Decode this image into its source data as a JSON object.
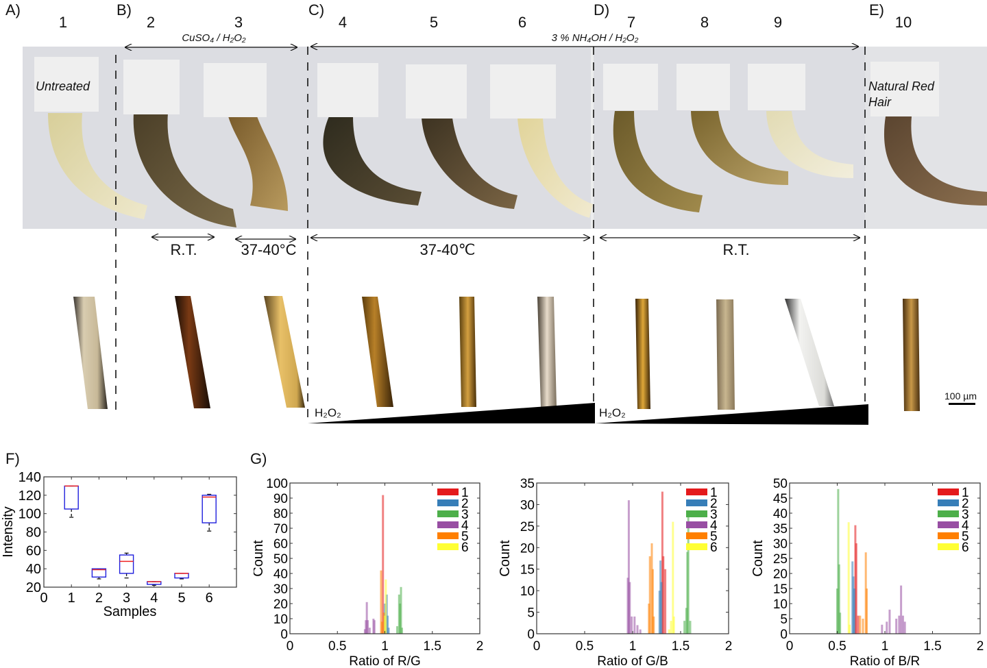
{
  "panels": {
    "A": {
      "letter": "A)",
      "samples": [
        "1"
      ],
      "card_label": "Untreated"
    },
    "B": {
      "letter": "B)",
      "samples": [
        "2",
        "3"
      ],
      "treatment": "CuSO₄ / H₂O₂",
      "conditions": [
        "R.T.",
        "37-40°C"
      ]
    },
    "C": {
      "letter": "C)",
      "samples": [
        "4",
        "5",
        "6"
      ],
      "condition": "37-40℃",
      "gradient_label": "H₂O₂"
    },
    "D": {
      "letter": "D)",
      "samples": [
        "7",
        "8",
        "9"
      ],
      "condition": "R.T.",
      "gradient_label": "H₂O₂"
    },
    "E": {
      "letter": "E)",
      "samples": [
        "10"
      ],
      "card_label_line1": "Natural Red",
      "card_label_line2": "Hair"
    },
    "CD_treatment": "3 % NH₄OH / H₂O₂",
    "F": {
      "letter": "F)"
    },
    "G": {
      "letter": "G)"
    }
  },
  "scale_bar": {
    "label": "100 µm"
  },
  "colors": {
    "series": [
      "#e41a1c",
      "#377eb8",
      "#4daf4a",
      "#984ea3",
      "#ff7f00",
      "#ffff33"
    ],
    "box": "#1f1fdd",
    "median": "#ee2222",
    "whisker": "#111111"
  },
  "chart_data": [
    {
      "type": "box",
      "panel": "F",
      "title": "",
      "xlabel": "Samples",
      "ylabel": "Intensity",
      "xlim": [
        0,
        7
      ],
      "ylim": [
        20,
        140
      ],
      "xticks": [
        "0",
        "1",
        "2",
        "3",
        "4",
        "5",
        "6"
      ],
      "yticks": [
        "20",
        "40",
        "60",
        "80",
        "100",
        "120",
        "140"
      ],
      "categories": [
        "1",
        "2",
        "3",
        "4",
        "5",
        "6"
      ],
      "boxes": [
        {
          "sample": 1,
          "min": 96,
          "q1": 105,
          "median": 130,
          "q3": 130,
          "max": 130
        },
        {
          "sample": 2,
          "min": 29,
          "q1": 31,
          "median": 39,
          "q3": 40,
          "max": 40
        },
        {
          "sample": 3,
          "min": 30,
          "q1": 35,
          "median": 48,
          "q3": 55,
          "max": 57
        },
        {
          "sample": 4,
          "min": 22,
          "q1": 23,
          "median": 26,
          "q3": 26,
          "max": 26
        },
        {
          "sample": 5,
          "min": 29,
          "q1": 30,
          "median": 35,
          "q3": 35,
          "max": 35
        },
        {
          "sample": 6,
          "min": 81,
          "q1": 90,
          "median": 118,
          "q3": 120,
          "max": 121
        }
      ],
      "grid": false
    },
    {
      "type": "histogram",
      "panel": "G-1",
      "xlabel": "Ratio of R/G",
      "ylabel": "Count",
      "xlim": [
        0,
        2
      ],
      "ylim": [
        0,
        100
      ],
      "xticks": [
        "0",
        "0.5",
        "1",
        "1.5",
        "2"
      ],
      "yticks": [
        "0",
        "10",
        "20",
        "30",
        "40",
        "50",
        "60",
        "70",
        "80",
        "90",
        "100"
      ],
      "legend": [
        "1",
        "2",
        "3",
        "4",
        "5",
        "6"
      ],
      "legend_position": "upper right",
      "series": [
        {
          "name": "1",
          "bins": [
            [
              0.98,
              92
            ]
          ]
        },
        {
          "name": "2",
          "bins": [
            [
              1.0,
              20
            ],
            [
              1.02,
              26
            ],
            [
              1.03,
              12
            ],
            [
              1.04,
              4
            ]
          ]
        },
        {
          "name": "3",
          "bins": [
            [
              1.13,
              5
            ],
            [
              1.15,
              26
            ],
            [
              1.16,
              20
            ],
            [
              1.17,
              31
            ],
            [
              1.18,
              4
            ]
          ]
        },
        {
          "name": "4",
          "bins": [
            [
              0.79,
              3
            ],
            [
              0.8,
              9
            ],
            [
              0.81,
              21
            ],
            [
              0.82,
              9
            ],
            [
              0.84,
              4
            ],
            [
              0.88,
              10
            ],
            [
              0.89,
              9
            ]
          ]
        },
        {
          "name": "5",
          "bins": [
            [
              0.96,
              42
            ],
            [
              0.97,
              8
            ],
            [
              0.99,
              14
            ]
          ]
        },
        {
          "name": "6",
          "bins": [
            [
              1.01,
              36
            ],
            [
              1.0,
              12
            ]
          ]
        }
      ]
    },
    {
      "type": "histogram",
      "panel": "G-2",
      "xlabel": "Ratio of G/B",
      "ylabel": "Count",
      "xlim": [
        0,
        2
      ],
      "ylim": [
        0,
        35
      ],
      "xticks": [
        "0",
        "0.5",
        "1",
        "1.5",
        "2"
      ],
      "yticks": [
        "0",
        "5",
        "10",
        "15",
        "20",
        "25",
        "30",
        "35"
      ],
      "legend": [
        "1",
        "2",
        "3",
        "4",
        "5",
        "6"
      ],
      "legend_position": "upper right",
      "series": [
        {
          "name": "1",
          "bins": [
            [
              1.31,
              33
            ],
            [
              1.32,
              18
            ],
            [
              1.34,
              15
            ]
          ]
        },
        {
          "name": "2",
          "bins": [
            [
              1.28,
              10
            ],
            [
              1.29,
              17
            ],
            [
              1.3,
              12
            ]
          ]
        },
        {
          "name": "3",
          "bins": [
            [
              1.54,
              3
            ],
            [
              1.56,
              6
            ],
            [
              1.57,
              19
            ],
            [
              1.58,
              28
            ],
            [
              1.6,
              3
            ]
          ]
        },
        {
          "name": "4",
          "bins": [
            [
              0.95,
              13
            ],
            [
              0.96,
              31
            ],
            [
              0.97,
              12
            ],
            [
              0.99,
              4
            ],
            [
              1.02,
              4
            ],
            [
              1.05,
              2
            ],
            [
              1.08,
              1
            ]
          ]
        },
        {
          "name": "5",
          "bins": [
            [
              1.17,
              7
            ],
            [
              1.18,
              18
            ],
            [
              1.2,
              21
            ],
            [
              1.21,
              15
            ],
            [
              1.22,
              4
            ]
          ]
        },
        {
          "name": "6",
          "bins": [
            [
              1.38,
              1
            ],
            [
              1.4,
              3
            ],
            [
              1.42,
              26
            ],
            [
              1.43,
              4
            ]
          ]
        }
      ]
    },
    {
      "type": "histogram",
      "panel": "G-3",
      "xlabel": "Ratio of B/R",
      "ylabel": "Count",
      "xlim": [
        0,
        2
      ],
      "ylim": [
        0,
        50
      ],
      "xticks": [
        "0",
        "0.5",
        "1",
        "1.5",
        "2"
      ],
      "yticks": [
        "0",
        "5",
        "10",
        "15",
        "20",
        "25",
        "30",
        "35",
        "40",
        "45",
        "50"
      ],
      "legend": [
        "1",
        "2",
        "3",
        "4",
        "5",
        "6"
      ],
      "legend_position": "upper right",
      "series": [
        {
          "name": "1",
          "bins": [
            [
              0.69,
              36
            ],
            [
              0.7,
              30
            ],
            [
              0.72,
              6
            ]
          ]
        },
        {
          "name": "2",
          "bins": [
            [
              0.66,
              24
            ],
            [
              0.67,
              19
            ],
            [
              0.68,
              15
            ]
          ]
        },
        {
          "name": "3",
          "bins": [
            [
              0.5,
              15
            ],
            [
              0.51,
              48
            ],
            [
              0.52,
              23
            ],
            [
              0.53,
              7
            ]
          ]
        },
        {
          "name": "4",
          "bins": [
            [
              0.97,
              3
            ],
            [
              1.02,
              4
            ],
            [
              1.05,
              8
            ],
            [
              1.12,
              5
            ],
            [
              1.15,
              6
            ],
            [
              1.17,
              16
            ],
            [
              1.19,
              6
            ],
            [
              1.21,
              4
            ]
          ]
        },
        {
          "name": "5",
          "bins": [
            [
              0.74,
              6
            ],
            [
              0.77,
              5
            ],
            [
              0.8,
              27
            ],
            [
              0.81,
              15
            ]
          ]
        },
        {
          "name": "6",
          "bins": [
            [
              0.62,
              37
            ],
            [
              0.63,
              3
            ]
          ]
        }
      ]
    }
  ]
}
